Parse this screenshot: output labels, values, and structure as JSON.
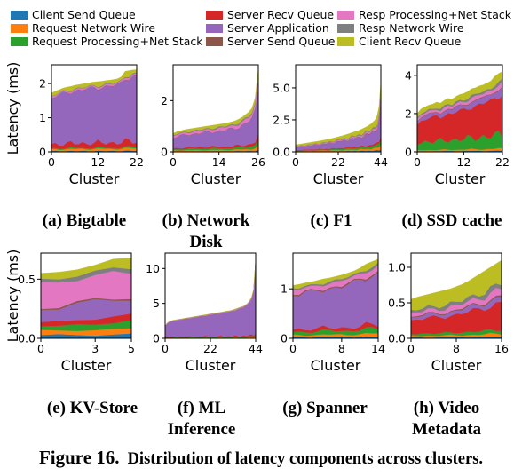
{
  "legend": [
    {
      "name": "Client Send Queue",
      "color": "#1f77b4"
    },
    {
      "name": "Request Network Wire",
      "color": "#ff7f0e"
    },
    {
      "name": "Request Processing+Net Stack",
      "color": "#2ca02c"
    },
    {
      "name": "Server Recv Queue",
      "color": "#d62728"
    },
    {
      "name": "Server Application",
      "color": "#9467bd"
    },
    {
      "name": "Server Send Queue",
      "color": "#8c564b"
    },
    {
      "name": "Resp Processing+Net Stack",
      "color": "#e377c2"
    },
    {
      "name": "Resp Network Wire",
      "color": "#7f7f7f"
    },
    {
      "name": "Client Recv Queue",
      "color": "#bcbd22"
    }
  ],
  "y_axis_label": "Latency (ms)",
  "x_axis_label": "Cluster",
  "figure_caption": {
    "label": "Figure 16.",
    "text": "Distribution of latency components across clusters."
  },
  "chart_data": [
    {
      "type": "area",
      "caption": [
        "(a) Bigtable"
      ],
      "xlabel": "Cluster",
      "ylabel": "Latency (ms)",
      "n": 23,
      "xlim": [
        0,
        22
      ],
      "ylim": [
        0,
        2.55
      ],
      "xticks": [
        0,
        12,
        22
      ],
      "yticks": [
        0,
        1,
        2
      ],
      "totals": [
        1.72,
        1.78,
        1.82,
        1.87,
        1.9,
        1.92,
        1.95,
        1.97,
        1.99,
        2.01,
        2.03,
        2.05,
        2.06,
        2.07,
        2.09,
        2.1,
        2.12,
        2.14,
        2.2,
        2.36,
        2.38,
        2.4,
        2.41
      ],
      "mix": [
        0.012,
        0.03,
        0.015,
        0.07,
        0.79,
        0.003,
        0.02,
        0.01,
        0.05
      ]
    },
    {
      "type": "area",
      "caption": [
        "(b) Network",
        "Disk"
      ],
      "xlabel": "Cluster",
      "ylabel": "Latency (ms)",
      "n": 27,
      "xlim": [
        0,
        26
      ],
      "ylim": [
        0,
        3.4
      ],
      "xticks": [
        0,
        14,
        26
      ],
      "yticks": [
        0,
        2
      ],
      "totals": [
        0.72,
        0.78,
        0.82,
        0.85,
        0.88,
        0.9,
        0.92,
        0.94,
        0.96,
        0.98,
        1.0,
        1.02,
        1.04,
        1.06,
        1.08,
        1.1,
        1.12,
        1.15,
        1.18,
        1.22,
        1.28,
        1.35,
        1.45,
        1.55,
        1.7,
        2.1,
        3.3
      ],
      "mix": [
        0.02,
        0.05,
        0.06,
        0.06,
        0.57,
        0.01,
        0.09,
        0.04,
        0.1
      ]
    },
    {
      "type": "area",
      "caption": [
        "(c) F1"
      ],
      "xlabel": "Cluster",
      "ylabel": "Latency (ms)",
      "n": 45,
      "xlim": [
        0,
        44
      ],
      "ylim": [
        0,
        6.8
      ],
      "xticks": [
        0,
        22,
        44
      ],
      "yticks": [
        0.0,
        2.5,
        5.0
      ],
      "totals": [
        0.55,
        0.58,
        0.6,
        0.62,
        0.65,
        0.68,
        0.7,
        0.72,
        0.75,
        0.78,
        0.8,
        0.82,
        0.85,
        0.88,
        0.9,
        0.93,
        0.96,
        1.0,
        1.03,
        1.06,
        1.1,
        1.14,
        1.18,
        1.22,
        1.26,
        1.3,
        1.35,
        1.4,
        1.45,
        1.5,
        1.55,
        1.6,
        1.65,
        1.7,
        1.78,
        1.85,
        1.92,
        2.0,
        2.1,
        2.2,
        2.35,
        2.5,
        2.8,
        3.5,
        5.5
      ],
      "mix": [
        0.04,
        0.07,
        0.08,
        0.06,
        0.42,
        0.02,
        0.06,
        0.05,
        0.2
      ]
    },
    {
      "type": "area",
      "caption": [
        "(d) SSD cache"
      ],
      "xlabel": "Cluster",
      "ylabel": "Latency (ms)",
      "n": 23,
      "xlim": [
        0,
        22
      ],
      "ylim": [
        0,
        4.55
      ],
      "xticks": [
        0,
        12,
        22
      ],
      "yticks": [
        0,
        2,
        4
      ],
      "totals": [
        2.0,
        2.25,
        2.35,
        2.45,
        2.5,
        2.6,
        2.55,
        2.7,
        2.8,
        2.75,
        2.9,
        3.0,
        3.05,
        3.15,
        3.3,
        3.35,
        3.45,
        3.5,
        3.6,
        3.7,
        3.95,
        4.1,
        4.2
      ],
      "mix": [
        0.015,
        0.025,
        0.18,
        0.5,
        0.08,
        0.01,
        0.05,
        0.035,
        0.105
      ]
    },
    {
      "type": "area",
      "caption": [
        "(e) KV-Store"
      ],
      "xlabel": "Cluster",
      "ylabel": "Latency (ms)",
      "n": 6,
      "xlim": [
        0,
        5
      ],
      "ylim": [
        0,
        0.72
      ],
      "xticks": [
        0,
        3,
        5
      ],
      "yticks": [
        0.0,
        0.5
      ],
      "totals": [
        0.55,
        0.56,
        0.58,
        0.62,
        0.67,
        0.68
      ],
      "mix": [
        0.05,
        0.07,
        0.08,
        0.07,
        0.21,
        0.02,
        0.34,
        0.06,
        0.1
      ]
    },
    {
      "type": "area",
      "caption": [
        "(f) ML",
        "Inference"
      ],
      "xlabel": "Cluster",
      "ylabel": "Latency (ms)",
      "n": 45,
      "xlim": [
        0,
        44
      ],
      "ylim": [
        0,
        12.2
      ],
      "xticks": [
        0,
        22,
        44
      ],
      "yticks": [
        0,
        5,
        10
      ],
      "totals": [
        1.8,
        2.2,
        2.4,
        2.5,
        2.6,
        2.65,
        2.7,
        2.75,
        2.8,
        2.85,
        2.9,
        2.95,
        3.0,
        3.05,
        3.1,
        3.15,
        3.2,
        3.25,
        3.3,
        3.35,
        3.4,
        3.45,
        3.5,
        3.55,
        3.6,
        3.65,
        3.7,
        3.75,
        3.8,
        3.85,
        3.9,
        3.95,
        4.0,
        4.1,
        4.2,
        4.3,
        4.4,
        4.5,
        4.6,
        4.8,
        5.0,
        5.4,
        5.9,
        7.0,
        11.3
      ],
      "mix": [
        0.01,
        0.015,
        0.02,
        0.03,
        0.88,
        0.005,
        0.02,
        0.01,
        0.01
      ]
    },
    {
      "type": "area",
      "caption": [
        "(g) Spanner"
      ],
      "xlabel": "Cluster",
      "ylabel": "Latency (ms)",
      "n": 15,
      "xlim": [
        0,
        14
      ],
      "ylim": [
        0,
        1.72
      ],
      "xticks": [
        0,
        8,
        14
      ],
      "yticks": [
        0,
        1
      ],
      "totals": [
        1.07,
        1.09,
        1.12,
        1.14,
        1.17,
        1.2,
        1.22,
        1.25,
        1.28,
        1.32,
        1.36,
        1.42,
        1.5,
        1.55,
        1.6
      ],
      "mix": [
        0.02,
        0.04,
        0.06,
        0.05,
        0.65,
        0.02,
        0.07,
        0.03,
        0.06
      ]
    },
    {
      "type": "area",
      "caption": [
        "(h) Video",
        "Metadata"
      ],
      "xlabel": "Cluster",
      "ylabel": "Latency (ms)",
      "n": 17,
      "xlim": [
        0,
        16
      ],
      "ylim": [
        0,
        1.2
      ],
      "xticks": [
        0,
        8,
        16
      ],
      "yticks": [
        0.0,
        0.5,
        1.0
      ],
      "totals": [
        0.55,
        0.58,
        0.6,
        0.62,
        0.64,
        0.66,
        0.68,
        0.7,
        0.73,
        0.76,
        0.8,
        0.85,
        0.9,
        0.95,
        1.0,
        1.05,
        1.1
      ],
      "mix": [
        0.02,
        0.04,
        0.05,
        0.35,
        0.07,
        0.02,
        0.08,
        0.07,
        0.3
      ]
    }
  ]
}
